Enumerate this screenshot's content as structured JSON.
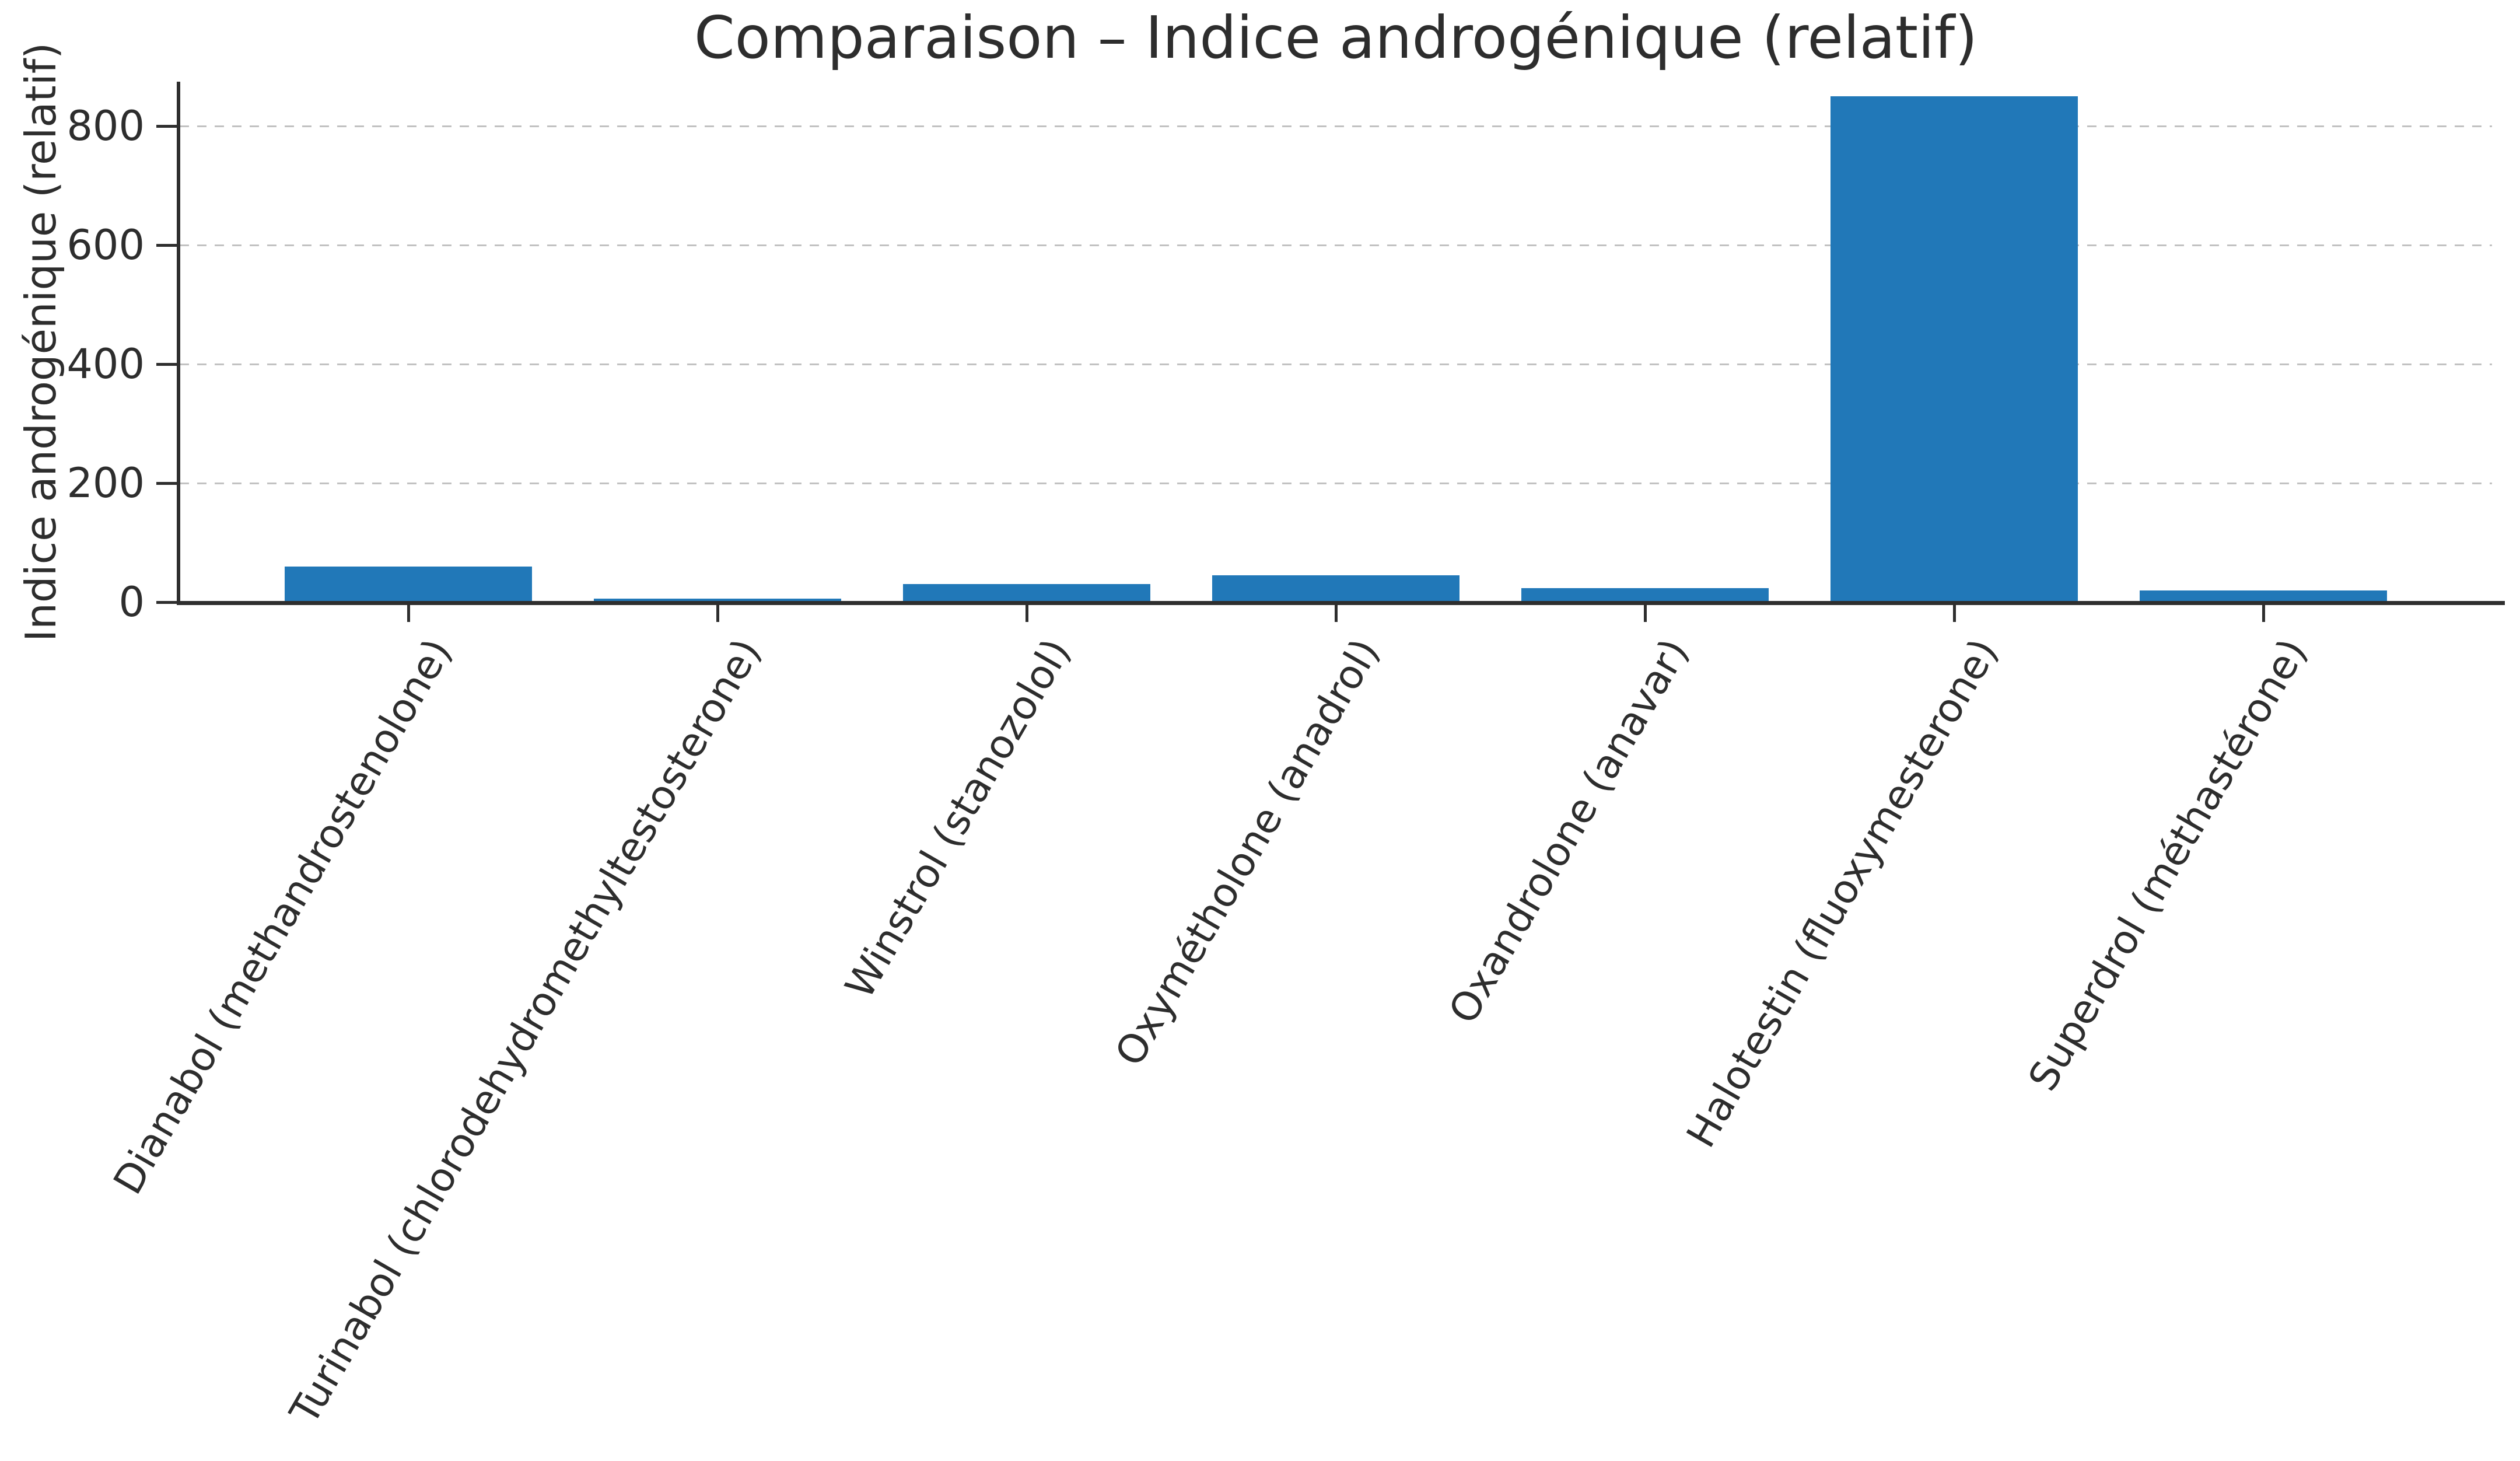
{
  "page": {
    "background": "#ffffff"
  },
  "colors": {
    "bar": "#2178b8",
    "axis_spine": "#2e2e2e",
    "gridline": "#c2c2c2",
    "text": "#2d2d2d"
  },
  "chart_data": {
    "type": "bar",
    "title": "Comparaison – Indice androgénique (relatif)",
    "xlabel": "",
    "ylabel": "Indice androgénique (relatif)",
    "categories": [
      "Dianabol (methandrostenolone)",
      "Turinabol (chlorodehydromethyltestosterone)",
      "Winstrol (stanozolol)",
      "Oxymétholone (anadrol)",
      "Oxandrolone (anavar)",
      "Halotestin (fluoxymesterone)",
      "Superdrol (méthastérone)"
    ],
    "values": [
      60,
      6,
      30,
      45,
      24,
      850,
      20
    ],
    "yticks": [
      "0",
      "200",
      "400",
      "600",
      "800"
    ],
    "ytick_values": [
      0,
      200,
      400,
      600,
      800
    ],
    "ylim": [
      0,
      875
    ],
    "grid": "horizontal-dashed",
    "legend_position": "none",
    "x_tick_rotation_deg": 60,
    "spines": "left-and-bottom-only"
  }
}
